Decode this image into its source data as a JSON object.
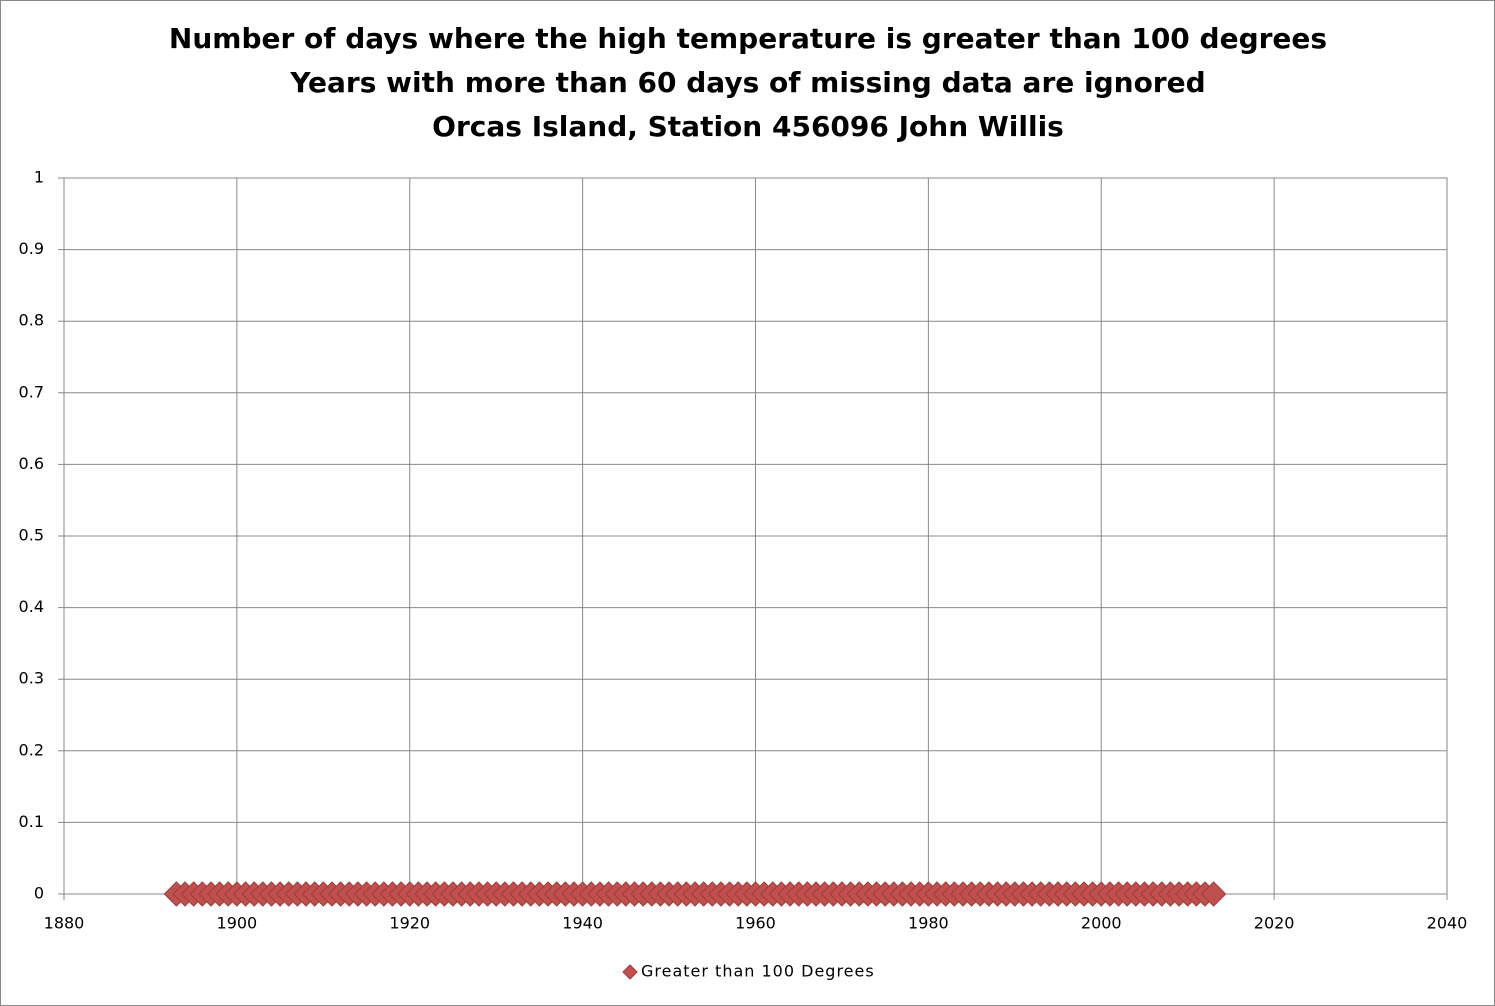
{
  "chart_data": {
    "type": "scatter",
    "title": "Number of days where the high temperature is greater than 100 degrees",
    "subtitle": [
      "Years with more than 60 days of missing data are ignored",
      "Orcas Island, Station 456096 John Willis"
    ],
    "x": [
      1893,
      1894,
      1895,
      1896,
      1897,
      1898,
      1899,
      1900,
      1901,
      1902,
      1903,
      1904,
      1905,
      1906,
      1907,
      1908,
      1909,
      1910,
      1911,
      1912,
      1913,
      1914,
      1915,
      1916,
      1917,
      1918,
      1919,
      1920,
      1921,
      1922,
      1923,
      1924,
      1925,
      1926,
      1927,
      1928,
      1929,
      1930,
      1931,
      1932,
      1933,
      1934,
      1935,
      1936,
      1937,
      1938,
      1939,
      1940,
      1941,
      1942,
      1943,
      1944,
      1945,
      1946,
      1947,
      1948,
      1949,
      1950,
      1951,
      1952,
      1953,
      1954,
      1955,
      1956,
      1957,
      1958,
      1959,
      1960,
      1961,
      1962,
      1963,
      1964,
      1965,
      1966,
      1967,
      1968,
      1969,
      1970,
      1971,
      1972,
      1973,
      1974,
      1975,
      1976,
      1977,
      1978,
      1979,
      1980,
      1981,
      1982,
      1983,
      1984,
      1985,
      1986,
      1987,
      1988,
      1989,
      1990,
      1991,
      1992,
      1993,
      1994,
      1995,
      1996,
      1997,
      1998,
      1999,
      2000,
      2001,
      2002,
      2003,
      2004,
      2005,
      2006,
      2007,
      2008,
      2009,
      2010,
      2011,
      2012,
      2013
    ],
    "series": [
      {
        "name": "Greater than 100 Degrees",
        "color": "#c0504d",
        "values": [
          0,
          0,
          0,
          0,
          0,
          0,
          0,
          0,
          0,
          0,
          0,
          0,
          0,
          0,
          0,
          0,
          0,
          0,
          0,
          0,
          0,
          0,
          0,
          0,
          0,
          0,
          0,
          0,
          0,
          0,
          0,
          0,
          0,
          0,
          0,
          0,
          0,
          0,
          0,
          0,
          0,
          0,
          0,
          0,
          0,
          0,
          0,
          0,
          0,
          0,
          0,
          0,
          0,
          0,
          0,
          0,
          0,
          0,
          0,
          0,
          0,
          0,
          0,
          0,
          0,
          0,
          0,
          0,
          0,
          0,
          0,
          0,
          0,
          0,
          0,
          0,
          0,
          0,
          0,
          0,
          0,
          0,
          0,
          0,
          0,
          0,
          0,
          0,
          0,
          0,
          0,
          0,
          0,
          0,
          0,
          0,
          0,
          0,
          0,
          0,
          0,
          0,
          0,
          0,
          0,
          0,
          0,
          0,
          0,
          0,
          0,
          0,
          0,
          0,
          0,
          0,
          0,
          0,
          0,
          0,
          0
        ]
      }
    ],
    "xlim": [
      1880,
      2040
    ],
    "xticks": [
      1880,
      1900,
      1920,
      1940,
      1960,
      1980,
      2000,
      2020,
      2040
    ],
    "ylim": [
      0,
      1
    ],
    "yticks": [
      0,
      0.1,
      0.2,
      0.3,
      0.4,
      0.5,
      0.6,
      0.7,
      0.8,
      0.9,
      1
    ],
    "grid": true,
    "legend": "bottom"
  }
}
